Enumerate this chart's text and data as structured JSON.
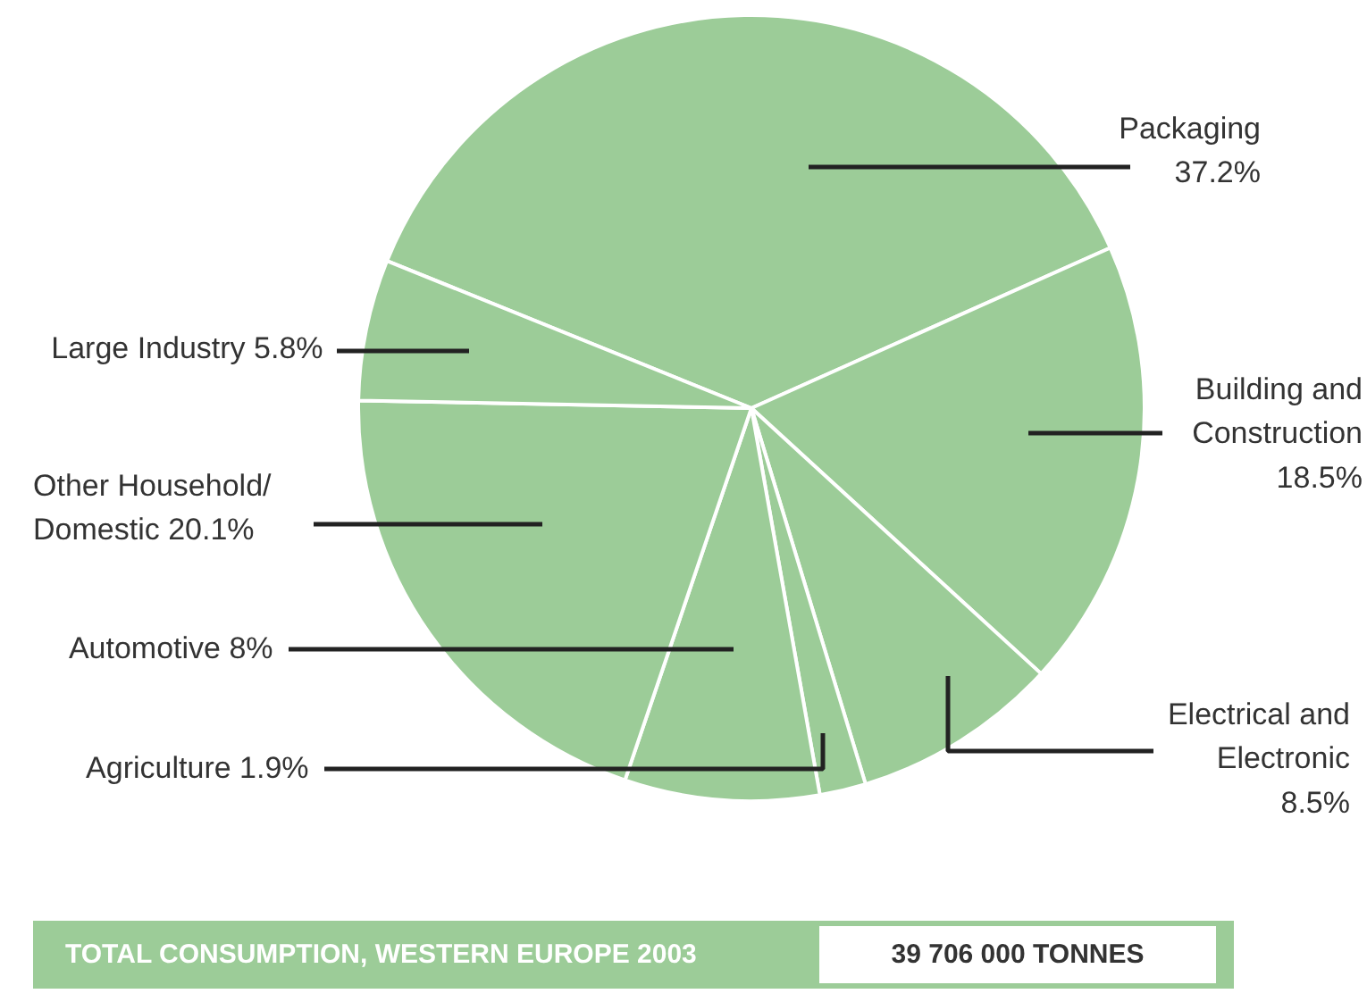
{
  "chart_data": {
    "type": "pie",
    "categories": [
      "Packaging",
      "Building and Construction",
      "Electrical and Electronic",
      "Agriculture",
      "Automotive",
      "Other Household/ Domestic",
      "Large Industry"
    ],
    "values": [
      37.2,
      18.5,
      8.5,
      1.9,
      8,
      20.1,
      5.8
    ],
    "value_labels": [
      "37.2%",
      "18.5%",
      "8.5%",
      "1.9%",
      "8%",
      "20.1%",
      "5.8%"
    ],
    "colors": [
      "#9ccc98",
      "#9ccc98",
      "#9ccc98",
      "#9ccc98",
      "#9ccc98",
      "#9ccc98",
      "#9ccc98"
    ],
    "annotations": [
      "TOTAL CONSUMPTION, WESTERN EUROPE 2003",
      "39 706 000 TONNES"
    ]
  }
}
